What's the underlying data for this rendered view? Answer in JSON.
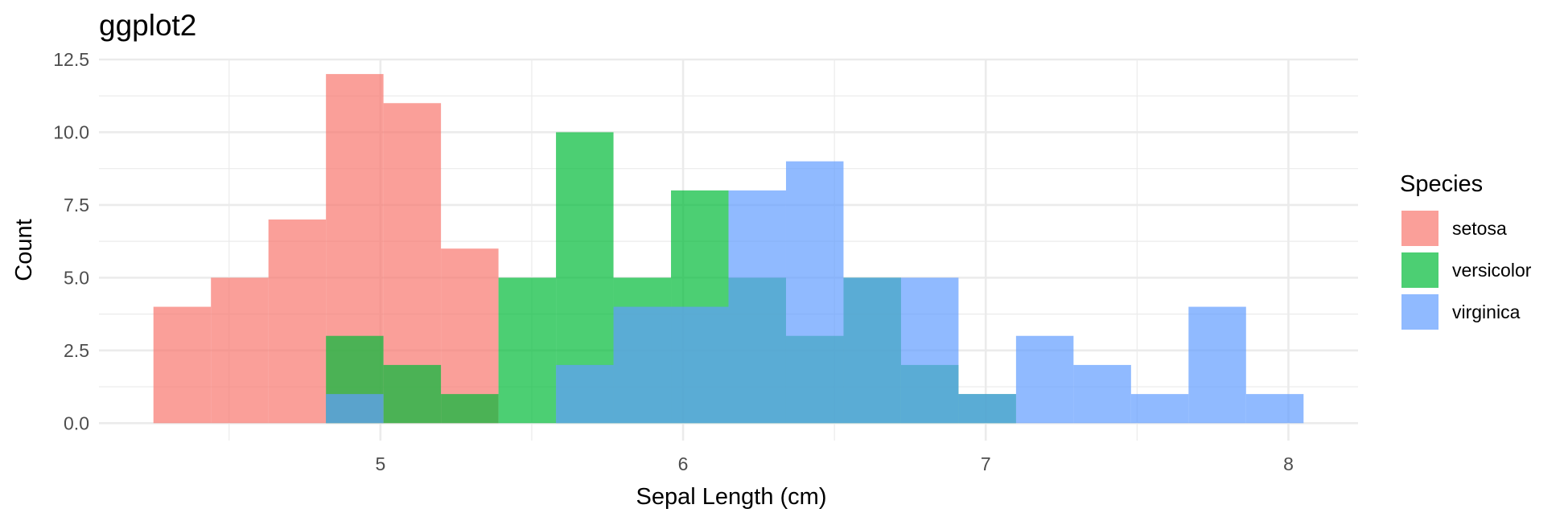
{
  "chart_data": {
    "type": "bar",
    "subtype": "histogram",
    "title": "ggplot2",
    "xlabel": "Sepal Length (cm)",
    "ylabel": "Count",
    "xlim": [
      4.07,
      8.23
    ],
    "ylim": [
      -0.6,
      12.5
    ],
    "x_ticks": [
      5,
      6,
      7,
      8
    ],
    "x_tick_labels": [
      "5",
      "6",
      "7",
      "8"
    ],
    "y_ticks": [
      0,
      2.5,
      5,
      7.5,
      10,
      12.5
    ],
    "y_tick_labels": [
      "0.0",
      "2.5",
      "5.0",
      "7.5",
      "10.0",
      "12.5"
    ],
    "grid": true,
    "bin_edges": [
      4.25,
      4.44,
      4.63,
      4.82,
      5.01,
      5.2,
      5.39,
      5.58,
      5.77,
      5.96,
      6.15,
      6.34,
      6.53,
      6.72,
      6.91,
      7.1,
      7.29,
      7.48,
      7.67,
      7.86,
      8.05
    ],
    "legend": {
      "title": "Species",
      "position": "right"
    },
    "series": [
      {
        "name": "setosa",
        "color": "#F8766D",
        "values": [
          4,
          5,
          7,
          12,
          11,
          6,
          0,
          0,
          0,
          0,
          0,
          0,
          0,
          0,
          0,
          0,
          0,
          0,
          0,
          0
        ]
      },
      {
        "name": "versicolor",
        "color": "#00BA38",
        "values": [
          0,
          0,
          0,
          3,
          2,
          1,
          5,
          10,
          5,
          8,
          5,
          3,
          5,
          2,
          1,
          0,
          0,
          0,
          0,
          0
        ]
      },
      {
        "name": "virginica",
        "color": "#619CFF",
        "values": [
          0,
          0,
          0,
          1,
          0,
          0,
          0,
          2,
          4,
          4,
          8,
          9,
          5,
          5,
          1,
          3,
          2,
          1,
          4,
          1
        ]
      }
    ],
    "bar_alpha": 0.7
  }
}
